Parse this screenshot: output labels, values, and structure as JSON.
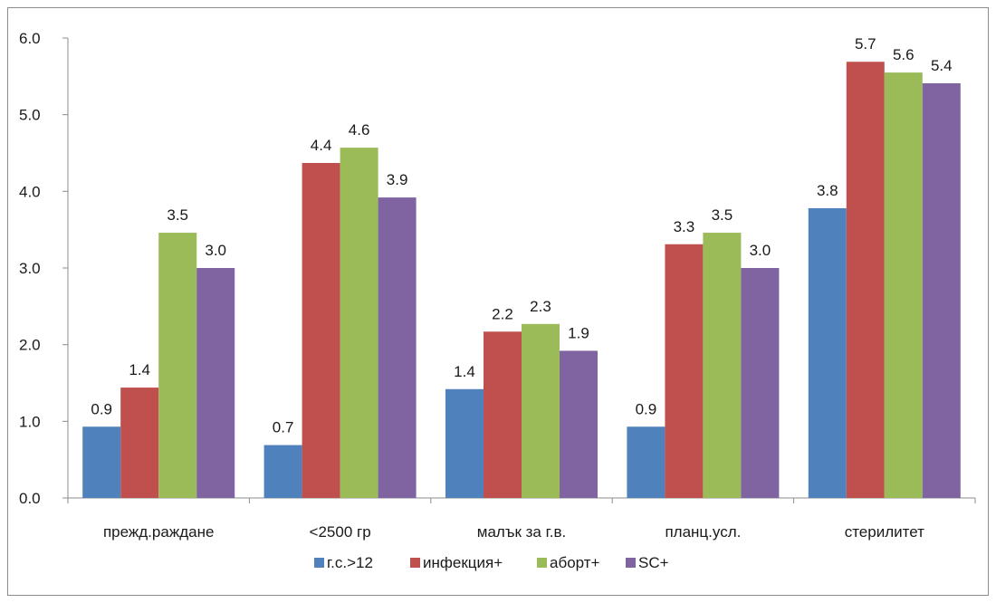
{
  "chart_data": {
    "type": "bar",
    "title": "",
    "xlabel": "",
    "ylabel": "",
    "ylim": [
      0,
      6
    ],
    "yticks": [
      "0.0",
      "1.0",
      "2.0",
      "3.0",
      "4.0",
      "5.0",
      "6.0"
    ],
    "grid": false,
    "legend_position": "bottom",
    "categories": [
      "прежд.раждане",
      "<2500 гр",
      "малък за г.в.",
      "планц.усл.",
      "стерилитет"
    ],
    "series": [
      {
        "name": "г.с.>12",
        "color": "#4f81bd",
        "values": [
          0.93,
          0.69,
          1.42,
          0.93,
          3.78
        ],
        "labels": [
          "0.9",
          "0.7",
          "1.4",
          "0.9",
          "3.8"
        ]
      },
      {
        "name": "инфекция+",
        "color": "#c0504d",
        "values": [
          1.44,
          4.37,
          2.17,
          3.31,
          5.69
        ],
        "labels": [
          "1.4",
          "4.4",
          "2.2",
          "3.3",
          "5.7"
        ]
      },
      {
        "name": "аборт+",
        "color": "#9bbb59",
        "values": [
          3.46,
          4.57,
          2.27,
          3.46,
          5.55
        ],
        "labels": [
          "3.5",
          "4.6",
          "2.3",
          "3.5",
          "5.6"
        ]
      },
      {
        "name": "SC+",
        "color": "#8064a2",
        "values": [
          3.0,
          3.92,
          1.92,
          3.0,
          5.41
        ],
        "labels": [
          "3.0",
          "3.9",
          "1.9",
          "3.0",
          "5.4"
        ]
      }
    ]
  }
}
